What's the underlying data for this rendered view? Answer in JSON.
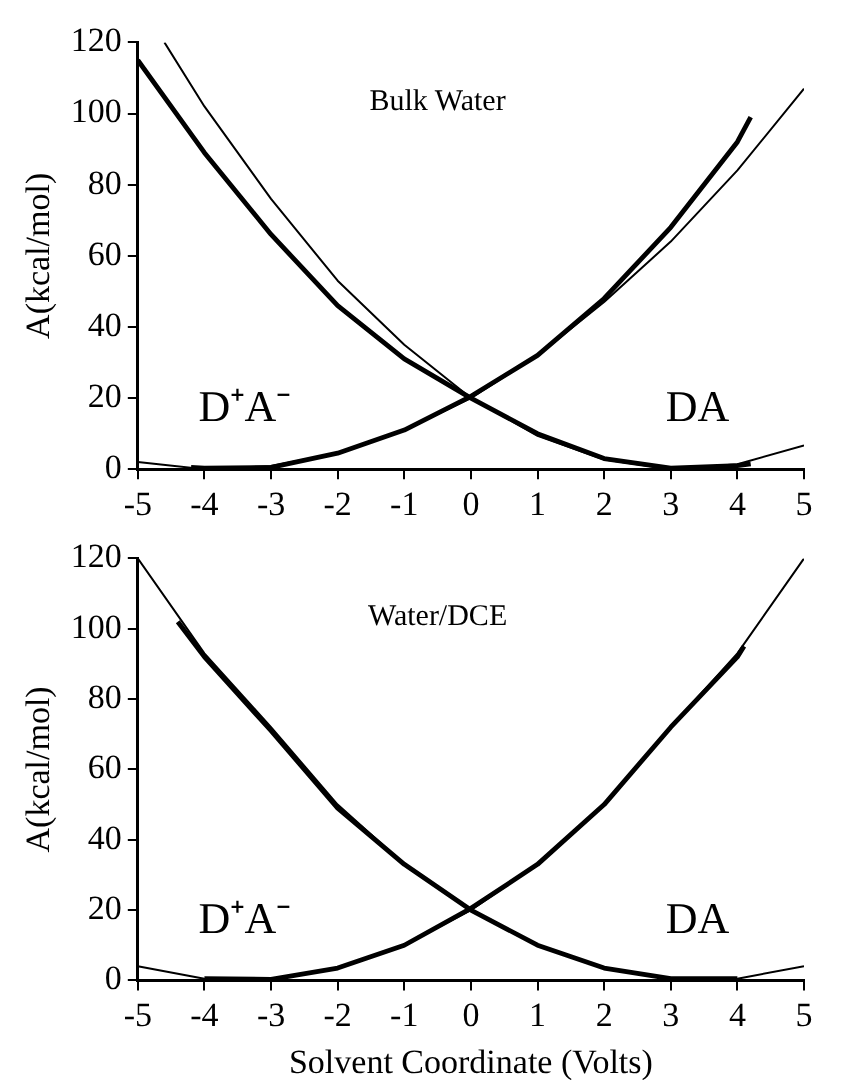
{
  "chart_data": [
    {
      "type": "line",
      "ylabel": "A(kcal/mol)",
      "xlim": [
        -5,
        5
      ],
      "xticks": [
        -5,
        -4,
        -3,
        -2,
        -1,
        0,
        1,
        2,
        3,
        4,
        5
      ],
      "ylim": [
        0,
        120
      ],
      "yticks": [
        0,
        20,
        40,
        60,
        80,
        100,
        120
      ],
      "grid": false,
      "legend": false,
      "marker": "none",
      "line_style": "solid",
      "annotations": [
        "Bulk Water",
        "D⁺A⁻",
        "DA"
      ],
      "series": [
        {
          "color": "#000000",
          "x": [
            -4.6,
            -4,
            -3,
            -2,
            -1,
            0,
            1,
            2,
            3,
            4,
            5
          ],
          "values": [
            120,
            102,
            76,
            53,
            35,
            20,
            9.4,
            2.7,
            0,
            1.4,
            6.7
          ]
        },
        {
          "color": "#000000",
          "x": [
            -5,
            -4,
            -3,
            -2,
            -1,
            0,
            1,
            2,
            3,
            4,
            5
          ],
          "values": [
            2,
            0,
            0.9,
            4.5,
            11,
            20,
            32,
            47,
            64,
            84,
            107
          ]
        },
        {
          "color": "#000000",
          "x": [
            -5,
            -4,
            -3,
            -2,
            -1,
            0,
            1,
            2,
            3,
            4,
            4.2
          ],
          "values": [
            115,
            89,
            66,
            46,
            31,
            20,
            10,
            3,
            0.3,
            1,
            1.5
          ]
        },
        {
          "color": "#000000",
          "x": [
            -4.2,
            -4,
            -3,
            -2,
            -1,
            0,
            1,
            2,
            3,
            4,
            4.2
          ],
          "values": [
            0.5,
            0.3,
            0.5,
            4.5,
            11,
            20.5,
            32,
            48,
            68,
            92,
            99
          ]
        }
      ]
    },
    {
      "type": "line",
      "ylabel": "A(kcal/mol)",
      "xlabel": "Solvent Coordinate (Volts)",
      "xlim": [
        -5,
        5
      ],
      "xticks": [
        -5,
        -4,
        -3,
        -2,
        -1,
        0,
        1,
        2,
        3,
        4,
        5
      ],
      "ylim": [
        0,
        120
      ],
      "yticks": [
        0,
        20,
        40,
        60,
        80,
        100,
        120
      ],
      "grid": false,
      "legend": false,
      "marker": "none",
      "line_style": "solid",
      "annotations": [
        "Water/DCE",
        "D⁺A⁻",
        "DA"
      ],
      "series": [
        {
          "color": "#000000",
          "x": [
            -5,
            -4,
            -3,
            -2,
            -1,
            0,
            1,
            2,
            3,
            4,
            5
          ],
          "values": [
            120,
            93,
            72,
            50,
            33,
            20,
            10,
            3.5,
            0.3,
            0.5,
            4
          ]
        },
        {
          "color": "#000000",
          "x": [
            -5,
            -4,
            -3,
            -2,
            -1,
            0,
            1,
            2,
            3,
            4,
            5
          ],
          "values": [
            4,
            0.5,
            0.3,
            3.5,
            10,
            20,
            33,
            50,
            72,
            93,
            120
          ]
        },
        {
          "color": "#000000",
          "x": [
            -4.4,
            -4,
            -3,
            -2,
            -1,
            0,
            1,
            2,
            3,
            4
          ],
          "values": [
            102,
            92,
            71,
            49,
            33,
            20,
            10,
            3.5,
            0.5,
            0.5
          ]
        },
        {
          "color": "#000000",
          "x": [
            -4,
            -3,
            -2,
            -1,
            0,
            1,
            2,
            3,
            4,
            4.1
          ],
          "values": [
            0.5,
            0.3,
            3.5,
            10,
            20.5,
            33,
            50,
            72,
            92,
            95
          ]
        }
      ]
    }
  ]
}
